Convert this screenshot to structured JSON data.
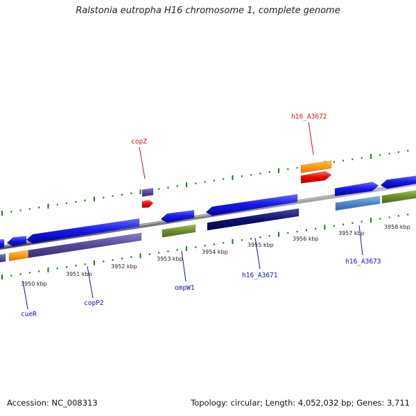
{
  "title": "Ralstonia eutropha H16 chromosome 1, complete genome",
  "footer": {
    "accession": "Accession: NC_008313",
    "topology": "Topology: circular; Length: 4,052,032 bp; Genes: 3,711"
  },
  "colors": {
    "backbone": "#808080",
    "tick": "#1a7a1a",
    "gene_label_blue": "#1010c0",
    "gene_label_red": "#d01010",
    "leader_blue": "#1010c0",
    "leader_red": "#d01010"
  },
  "kbp_labels": [
    "3950 kbp",
    "3951 kbp",
    "3952 kbp",
    "3953 kbp",
    "3954 kbp",
    "3955 kbp",
    "3956 kbp",
    "3957 kbp",
    "3958 kbp"
  ],
  "gene_labels": [
    {
      "name": "cueR",
      "color": "blue"
    },
    {
      "name": "copP2",
      "color": "blue"
    },
    {
      "name": "ompW1",
      "color": "blue"
    },
    {
      "name": "h16_A3671",
      "color": "blue"
    },
    {
      "name": "h16_A3673",
      "color": "blue"
    },
    {
      "name": "copZ",
      "color": "red"
    },
    {
      "name": "h16_A3672",
      "color": "red"
    }
  ]
}
